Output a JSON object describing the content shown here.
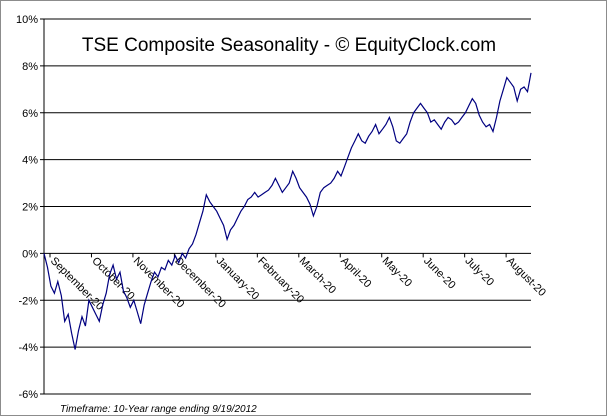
{
  "chart_data": {
    "type": "line",
    "title": "TSE Composite Seasonality - © EquityClock.com",
    "footnote": "Timeframe: 10-Year range ending 9/19/2012",
    "xlabel": "",
    "ylabel": "",
    "y_ticks": [
      "-6%",
      "-4%",
      "-2%",
      "0%",
      "2%",
      "4%",
      "6%",
      "8%",
      "10%"
    ],
    "ylim": [
      -6,
      10
    ],
    "y_unit": "%",
    "grid": true,
    "line_color": "#000080",
    "categories": [
      "September-20",
      "October-20",
      "November-20",
      "December-20",
      "January-20",
      "February-20",
      "March-20",
      "April-20",
      "May-20",
      "June-20",
      "July-20",
      "August-20"
    ],
    "series": [
      {
        "values": [
          [
            0,
            0.0
          ],
          [
            1,
            -0.6
          ],
          [
            2,
            -1.4
          ],
          [
            3,
            -1.7
          ],
          [
            4,
            -1.2
          ],
          [
            5,
            -1.8
          ],
          [
            6,
            -2.9
          ],
          [
            7,
            -2.6
          ],
          [
            8,
            -3.4
          ],
          [
            9,
            -4.1
          ],
          [
            10,
            -3.3
          ],
          [
            11,
            -2.7
          ],
          [
            12,
            -3.1
          ],
          [
            13,
            -2.0
          ],
          [
            14,
            -2.3
          ],
          [
            15,
            -2.6
          ],
          [
            16,
            -2.9
          ],
          [
            17,
            -2.2
          ],
          [
            18,
            -1.7
          ],
          [
            19,
            -0.9
          ],
          [
            20,
            -0.5
          ],
          [
            21,
            -1.1
          ],
          [
            22,
            -0.8
          ],
          [
            23,
            -1.6
          ],
          [
            24,
            -1.9
          ],
          [
            25,
            -2.3
          ],
          [
            26,
            -2.0
          ],
          [
            27,
            -2.5
          ],
          [
            28,
            -3.0
          ],
          [
            29,
            -2.2
          ],
          [
            30,
            -1.7
          ],
          [
            31,
            -1.2
          ],
          [
            32,
            -0.8
          ],
          [
            33,
            -1.0
          ],
          [
            34,
            -0.6
          ],
          [
            35,
            -0.7
          ],
          [
            36,
            -0.3
          ],
          [
            37,
            -0.5
          ],
          [
            38,
            -0.1
          ],
          [
            39,
            -0.4
          ],
          [
            40,
            0.0
          ],
          [
            41,
            -0.2
          ],
          [
            42,
            0.2
          ],
          [
            43,
            0.4
          ],
          [
            44,
            0.8
          ],
          [
            45,
            1.3
          ],
          [
            46,
            1.8
          ],
          [
            47,
            2.5
          ],
          [
            48,
            2.2
          ],
          [
            49,
            2.0
          ],
          [
            50,
            1.8
          ],
          [
            51,
            1.5
          ],
          [
            52,
            1.2
          ],
          [
            53,
            0.6
          ],
          [
            54,
            1.0
          ],
          [
            55,
            1.2
          ],
          [
            56,
            1.5
          ],
          [
            57,
            1.8
          ],
          [
            58,
            2.0
          ],
          [
            59,
            2.3
          ],
          [
            60,
            2.4
          ],
          [
            61,
            2.6
          ],
          [
            62,
            2.4
          ],
          [
            63,
            2.5
          ],
          [
            64,
            2.6
          ],
          [
            65,
            2.7
          ],
          [
            66,
            2.9
          ],
          [
            67,
            3.2
          ],
          [
            68,
            2.9
          ],
          [
            69,
            2.6
          ],
          [
            70,
            2.8
          ],
          [
            71,
            3.0
          ],
          [
            72,
            3.5
          ],
          [
            73,
            3.2
          ],
          [
            74,
            2.8
          ],
          [
            75,
            2.6
          ],
          [
            76,
            2.4
          ],
          [
            77,
            2.1
          ],
          [
            78,
            1.6
          ],
          [
            79,
            2.0
          ],
          [
            80,
            2.6
          ],
          [
            81,
            2.8
          ],
          [
            82,
            2.9
          ],
          [
            83,
            3.0
          ],
          [
            84,
            3.2
          ],
          [
            85,
            3.5
          ],
          [
            86,
            3.3
          ],
          [
            87,
            3.7
          ],
          [
            88,
            4.1
          ],
          [
            89,
            4.5
          ],
          [
            90,
            4.8
          ],
          [
            91,
            5.1
          ],
          [
            92,
            4.8
          ],
          [
            93,
            4.7
          ],
          [
            94,
            5.0
          ],
          [
            95,
            5.2
          ],
          [
            96,
            5.5
          ],
          [
            97,
            5.1
          ],
          [
            98,
            5.3
          ],
          [
            99,
            5.5
          ],
          [
            100,
            5.8
          ],
          [
            101,
            5.4
          ],
          [
            102,
            4.8
          ],
          [
            103,
            4.7
          ],
          [
            104,
            4.9
          ],
          [
            105,
            5.1
          ],
          [
            106,
            5.6
          ],
          [
            107,
            6.0
          ],
          [
            108,
            6.2
          ],
          [
            109,
            6.4
          ],
          [
            110,
            6.2
          ],
          [
            111,
            6.0
          ],
          [
            112,
            5.6
          ],
          [
            113,
            5.7
          ],
          [
            114,
            5.5
          ],
          [
            115,
            5.3
          ],
          [
            116,
            5.6
          ],
          [
            117,
            5.8
          ],
          [
            118,
            5.7
          ],
          [
            119,
            5.5
          ],
          [
            120,
            5.6
          ],
          [
            121,
            5.8
          ],
          [
            122,
            6.0
          ],
          [
            123,
            6.3
          ],
          [
            124,
            6.6
          ],
          [
            125,
            6.4
          ],
          [
            126,
            5.9
          ],
          [
            127,
            5.6
          ],
          [
            128,
            5.4
          ],
          [
            129,
            5.5
          ],
          [
            130,
            5.2
          ],
          [
            131,
            5.8
          ],
          [
            132,
            6.5
          ],
          [
            133,
            7.0
          ],
          [
            134,
            7.5
          ],
          [
            135,
            7.3
          ],
          [
            136,
            7.1
          ],
          [
            137,
            6.5
          ],
          [
            138,
            7.0
          ],
          [
            139,
            7.1
          ],
          [
            140,
            6.9
          ],
          [
            141,
            7.7
          ]
        ]
      }
    ]
  }
}
